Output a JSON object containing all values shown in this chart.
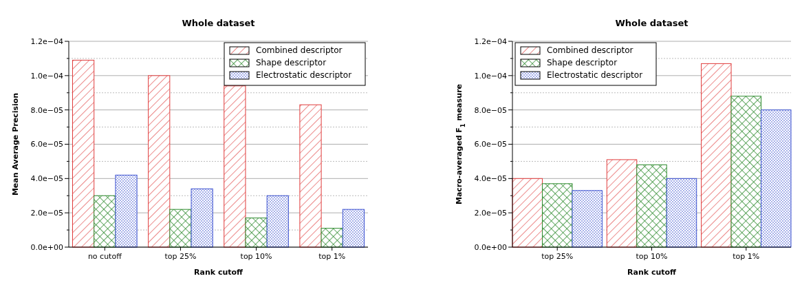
{
  "chart_data": [
    {
      "type": "bar",
      "title": "Whole dataset",
      "xlabel": "Rank cutoff",
      "ylabel": "Mean Average Precision",
      "categories": [
        "no cutoff",
        "top 25%",
        "top 10%",
        "top 1%"
      ],
      "series": [
        {
          "name": "Combined descriptor",
          "color": "#e03c3c",
          "values": [
            0.000109,
            0.0001,
            9.4e-05,
            8.3e-05
          ]
        },
        {
          "name": "Shape descriptor",
          "color": "#2e8b2e",
          "values": [
            3e-05,
            2.2e-05,
            1.7e-05,
            1.1e-05
          ]
        },
        {
          "name": "Electrostatic descriptor",
          "color": "#3a50d0",
          "values": [
            4.2e-05,
            3.4e-05,
            3e-05,
            2.2e-05
          ]
        }
      ],
      "ylim": [
        0,
        0.00012
      ],
      "yticks": [
        {
          "value": 0,
          "label": "0.0e+00"
        },
        {
          "value": 1e-05,
          "label": null
        },
        {
          "value": 2e-05,
          "label": "2.0e−05"
        },
        {
          "value": 3e-05,
          "label": null
        },
        {
          "value": 4e-05,
          "label": "4.0e−05"
        },
        {
          "value": 5e-05,
          "label": null
        },
        {
          "value": 6e-05,
          "label": "6.0e−05"
        },
        {
          "value": 7e-05,
          "label": null
        },
        {
          "value": 8e-05,
          "label": "8.0e−05"
        },
        {
          "value": 9e-05,
          "label": null
        },
        {
          "value": 0.0001,
          "label": "1.0e−04"
        },
        {
          "value": 0.00011,
          "label": null
        },
        {
          "value": 0.00012,
          "label": "1.2e−04"
        }
      ],
      "grid": "y",
      "legend": "top right"
    },
    {
      "type": "bar",
      "title": "Whole dataset",
      "xlabel": "Rank cutoff",
      "ylabel": "Macro-averaged F$_{1}$ measure",
      "categories": [
        "top 25%",
        "top 10%",
        "top 1%"
      ],
      "series": [
        {
          "name": "Combined descriptor",
          "color": "#e03c3c",
          "values": [
            4e-05,
            5.1e-05,
            0.000107
          ]
        },
        {
          "name": "Shape descriptor",
          "color": "#2e8b2e",
          "values": [
            3.7e-05,
            4.8e-05,
            8.8e-05
          ]
        },
        {
          "name": "Electrostatic descriptor",
          "color": "#3a50d0",
          "values": [
            3.3e-05,
            4e-05,
            8e-05
          ]
        }
      ],
      "ylim": [
        0,
        0.00012
      ],
      "yticks": [
        {
          "value": 0,
          "label": "0.0e+00"
        },
        {
          "value": 1e-05,
          "label": null
        },
        {
          "value": 2e-05,
          "label": "2.0e−05"
        },
        {
          "value": 3e-05,
          "label": null
        },
        {
          "value": 4e-05,
          "label": "4.0e−05"
        },
        {
          "value": 5e-05,
          "label": null
        },
        {
          "value": 6e-05,
          "label": "6.0e−05"
        },
        {
          "value": 7e-05,
          "label": null
        },
        {
          "value": 8e-05,
          "label": "8.0e−05"
        },
        {
          "value": 9e-05,
          "label": null
        },
        {
          "value": 0.0001,
          "label": "1.0e−04"
        },
        {
          "value": 0.00011,
          "label": null
        },
        {
          "value": 0.00012,
          "label": "1.2e−04"
        }
      ],
      "grid": "y",
      "legend": "top left"
    }
  ]
}
